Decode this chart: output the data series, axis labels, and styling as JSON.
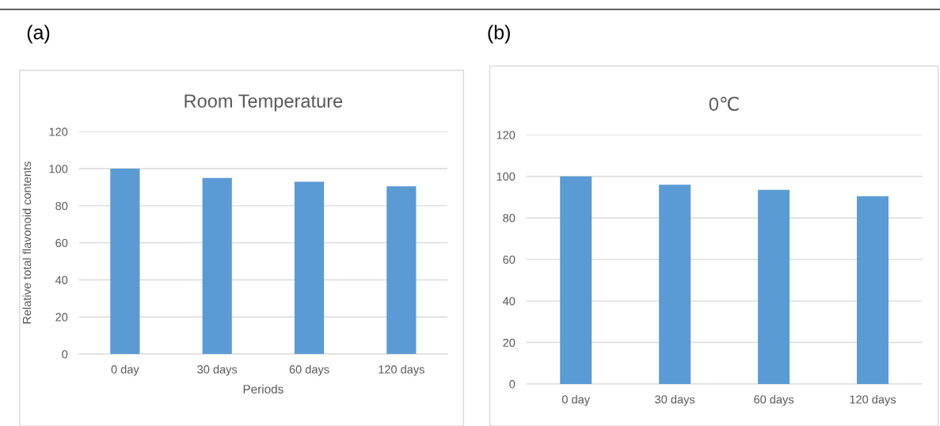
{
  "chart_data": [
    {
      "type": "bar",
      "title": "Room Temperature",
      "xlabel": "Periods",
      "ylabel": "Relative total flavonoid contents",
      "annotations": [
        "(a)"
      ],
      "categories": [
        "0 day",
        "30 days",
        "60 days",
        "120 days"
      ],
      "series": [
        {
          "color": "#5b9bd5",
          "values": [
            100,
            95,
            93,
            90.5
          ]
        }
      ],
      "ylim": [
        0,
        120
      ],
      "yticks": [
        0,
        20,
        40,
        60,
        80,
        100,
        120
      ],
      "grid": "y"
    },
    {
      "type": "bar",
      "title": "0℃",
      "annotations": [
        "(b)"
      ],
      "categories": [
        "0 day",
        "30 days",
        "60 days",
        "120 days"
      ],
      "series": [
        {
          "color": "#5b9bd5",
          "values": [
            100,
            96,
            93.5,
            90.5
          ]
        }
      ],
      "ylim": [
        0,
        120
      ],
      "yticks": [
        0,
        20,
        40,
        60,
        80,
        100,
        120
      ],
      "grid": "y"
    }
  ]
}
